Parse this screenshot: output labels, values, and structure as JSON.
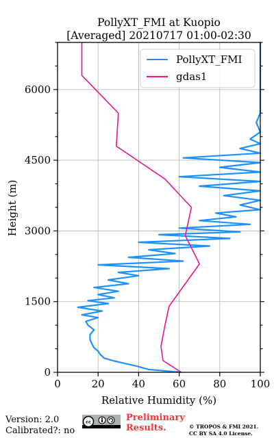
{
  "chart_data": {
    "type": "line",
    "title_line1": "PollyXT_FMI at Kuopio",
    "title_line2": "[Averaged] 20210717 01:00-02:30",
    "xlabel": "Relative Humidity (%)",
    "ylabel": "Height (m)",
    "xlim": [
      0,
      100
    ],
    "ylim": [
      0,
      7000
    ],
    "xticks": [
      0,
      20,
      40,
      60,
      80,
      100
    ],
    "yticks": [
      0,
      1500,
      3000,
      4500,
      6000
    ],
    "grid": true,
    "legend_position": "top-right",
    "series": [
      {
        "name": "PollyXT_FMI",
        "color": "#1e90ff",
        "points": [
          [
            61,
            0
          ],
          [
            45,
            60
          ],
          [
            40,
            120
          ],
          [
            34,
            180
          ],
          [
            28,
            240
          ],
          [
            23,
            300
          ],
          [
            21,
            380
          ],
          [
            20,
            450
          ],
          [
            18,
            520
          ],
          [
            17,
            600
          ],
          [
            16,
            700
          ],
          [
            16,
            800
          ],
          [
            18,
            900
          ],
          [
            15,
            1000
          ],
          [
            14,
            1080
          ],
          [
            20,
            1160
          ],
          [
            12,
            1220
          ],
          [
            22,
            1300
          ],
          [
            10,
            1380
          ],
          [
            25,
            1460
          ],
          [
            15,
            1520
          ],
          [
            28,
            1580
          ],
          [
            20,
            1650
          ],
          [
            30,
            1720
          ],
          [
            18,
            1800
          ],
          [
            35,
            1880
          ],
          [
            25,
            1960
          ],
          [
            40,
            2050
          ],
          [
            30,
            2120
          ],
          [
            55,
            2200
          ],
          [
            20,
            2280
          ],
          [
            62,
            2360
          ],
          [
            35,
            2440
          ],
          [
            58,
            2520
          ],
          [
            45,
            2600
          ],
          [
            75,
            2680
          ],
          [
            40,
            2760
          ],
          [
            85,
            2840
          ],
          [
            50,
            2920
          ],
          [
            90,
            2980
          ],
          [
            60,
            3060
          ],
          [
            95,
            3140
          ],
          [
            70,
            3220
          ],
          [
            88,
            3300
          ],
          [
            78,
            3380
          ],
          [
            100,
            3450
          ],
          [
            90,
            3550
          ],
          [
            100,
            3650
          ],
          [
            82,
            3750
          ],
          [
            100,
            3850
          ],
          [
            70,
            3950
          ],
          [
            100,
            4050
          ],
          [
            60,
            4150
          ],
          [
            100,
            4250
          ],
          [
            80,
            4350
          ],
          [
            100,
            4450
          ],
          [
            62,
            4550
          ],
          [
            100,
            4650
          ],
          [
            90,
            4750
          ],
          [
            100,
            4850
          ],
          [
            95,
            4950
          ],
          [
            100,
            5100
          ],
          [
            98,
            5300
          ],
          [
            100,
            5500
          ],
          [
            100,
            5800
          ],
          [
            100,
            6100
          ],
          [
            100,
            6400
          ],
          [
            100,
            6700
          ],
          [
            100,
            7000
          ]
        ]
      },
      {
        "name": "gdas1",
        "color": "#ee1289",
        "points": [
          [
            61,
            0
          ],
          [
            52,
            250
          ],
          [
            51,
            550
          ],
          [
            53,
            1000
          ],
          [
            55,
            1400
          ],
          [
            70,
            2300
          ],
          [
            63,
            2900
          ],
          [
            66,
            3500
          ],
          [
            53,
            4100
          ],
          [
            29,
            4800
          ],
          [
            30,
            5500
          ],
          [
            12,
            6300
          ],
          [
            12,
            7000
          ]
        ]
      }
    ]
  },
  "footer": {
    "version": "Version: 2.0",
    "calibrated": "Calibrated?: no",
    "preliminary_line1": "Preliminary",
    "preliminary_line2": "Results.",
    "copyright_line1": "© TROPOS & FMI 2021.",
    "copyright_line2": "CC BY SA 4.0 License."
  }
}
